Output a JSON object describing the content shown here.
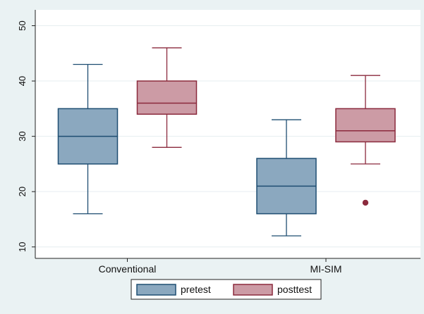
{
  "chart_data": {
    "type": "box",
    "title": "",
    "xlabel": "",
    "ylabel": "",
    "ylim": [
      8,
      52
    ],
    "yticks": [
      10,
      20,
      30,
      40,
      50
    ],
    "categories": [
      "Conventional",
      "MI-SIM"
    ],
    "legend_position": "bottom",
    "series": [
      {
        "name": "pretest",
        "fill": "#8ba8bf",
        "stroke": "#1f4e72",
        "boxes": [
          {
            "category": "Conventional",
            "whisker_low": 16,
            "q1": 25,
            "median": 30,
            "q3": 35,
            "whisker_high": 43,
            "outliers": []
          },
          {
            "category": "MI-SIM",
            "whisker_low": 12,
            "q1": 16,
            "median": 21,
            "q3": 26,
            "whisker_high": 33,
            "outliers": []
          }
        ]
      },
      {
        "name": "posttest",
        "fill": "#cc9ba5",
        "stroke": "#8b2a3d",
        "boxes": [
          {
            "category": "Conventional",
            "whisker_low": 28,
            "q1": 34,
            "median": 36,
            "q3": 40,
            "whisker_high": 46,
            "outliers": []
          },
          {
            "category": "MI-SIM",
            "whisker_low": 25,
            "q1": 29,
            "median": 31,
            "q3": 35,
            "whisker_high": 41,
            "outliers": [
              18
            ]
          }
        ]
      }
    ]
  }
}
